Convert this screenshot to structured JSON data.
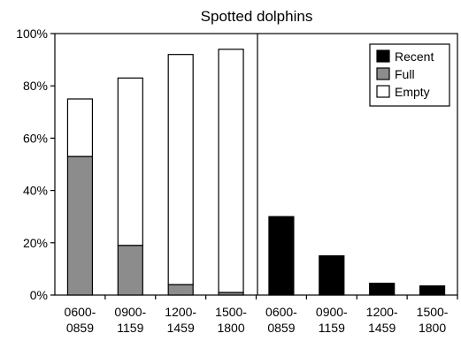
{
  "chart_data": {
    "type": "bar",
    "title": "Spotted dolphins",
    "xlabel": "",
    "ylabel": "",
    "ylim": [
      0,
      100
    ],
    "yticks": [
      "0%",
      "20%",
      "40%",
      "60%",
      "80%",
      "100%"
    ],
    "grid": false,
    "legend_position": "top-right",
    "colors": {
      "Recent": "#000000",
      "Full": "#8c8c8c",
      "Empty": "#ffffff"
    },
    "panels": [
      {
        "categories": [
          [
            "0600-",
            "0859"
          ],
          [
            "0900-",
            "1159"
          ],
          [
            "1200-",
            "1459"
          ],
          [
            "1500-",
            "1800"
          ]
        ],
        "stacked": true,
        "series": [
          {
            "name": "Full",
            "values": [
              53,
              19,
              4,
              1
            ]
          },
          {
            "name": "Empty",
            "values": [
              22,
              64,
              88,
              93
            ]
          }
        ]
      },
      {
        "categories": [
          [
            "0600-",
            "0859"
          ],
          [
            "0900-",
            "1159"
          ],
          [
            "1200-",
            "1459"
          ],
          [
            "1500-",
            "1800"
          ]
        ],
        "stacked": false,
        "series": [
          {
            "name": "Recent",
            "values": [
              30,
              15,
              4.5,
              3.5
            ]
          }
        ]
      }
    ],
    "legend": [
      "Recent",
      "Full",
      "Empty"
    ]
  }
}
